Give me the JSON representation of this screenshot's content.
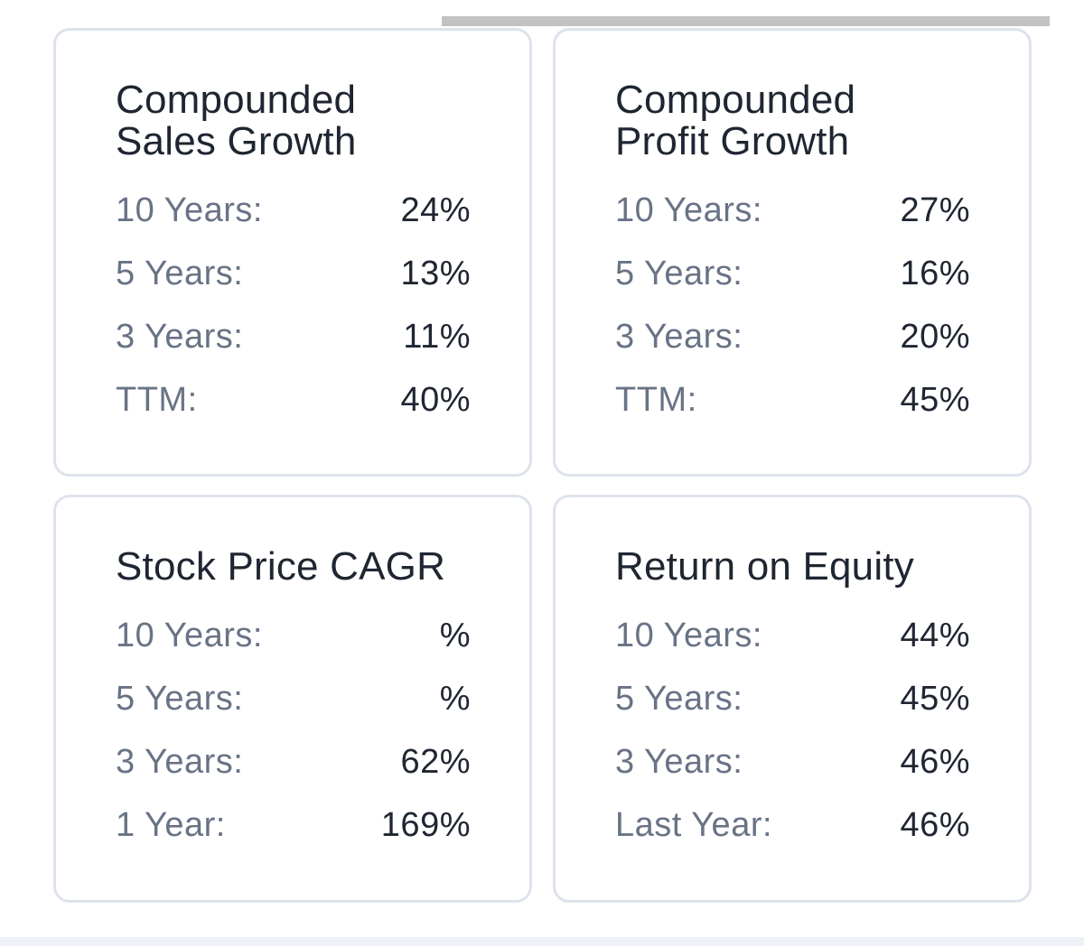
{
  "cards": [
    {
      "title": "Compounded\nSales Growth",
      "rows": [
        {
          "label": "10 Years:",
          "value": "24%"
        },
        {
          "label": "5 Years:",
          "value": "13%"
        },
        {
          "label": "3 Years:",
          "value": "11%"
        },
        {
          "label": "TTM:",
          "value": "40%"
        }
      ]
    },
    {
      "title": "Compounded\nProfit Growth",
      "rows": [
        {
          "label": "10 Years:",
          "value": "27%"
        },
        {
          "label": "5 Years:",
          "value": "16%"
        },
        {
          "label": "3 Years:",
          "value": "20%"
        },
        {
          "label": "TTM:",
          "value": "45%"
        }
      ]
    },
    {
      "title": "Stock Price CAGR",
      "rows": [
        {
          "label": "10 Years:",
          "value": "%"
        },
        {
          "label": "5 Years:",
          "value": "%"
        },
        {
          "label": "3 Years:",
          "value": "62%"
        },
        {
          "label": "1 Year:",
          "value": "169%"
        }
      ]
    },
    {
      "title": "Return on Equity",
      "rows": [
        {
          "label": "10 Years:",
          "value": "44%"
        },
        {
          "label": "5 Years:",
          "value": "45%"
        },
        {
          "label": "3 Years:",
          "value": "46%"
        },
        {
          "label": "Last Year:",
          "value": "46%"
        }
      ]
    }
  ]
}
